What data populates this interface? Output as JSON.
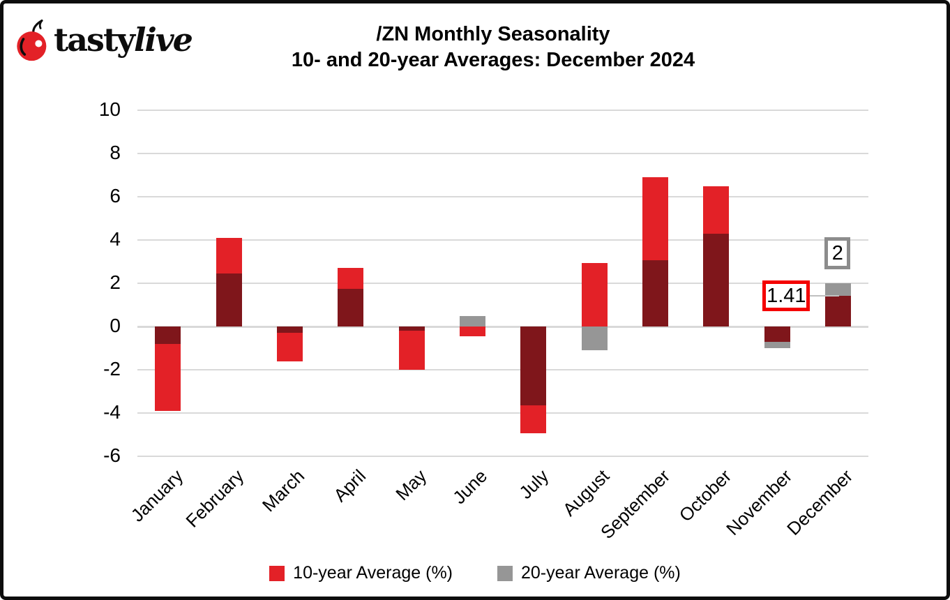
{
  "logo": {
    "brand_regular": "tasty",
    "brand_italic": "live",
    "icon": "cherry-icon"
  },
  "title": {
    "line1": "/ZN Monthly Seasonality",
    "line2": "10- and 20-year Averages: December 2024"
  },
  "chart_data": {
    "type": "bar",
    "title": "/ZN Monthly Seasonality",
    "subtitle": "10- and 20-year Averages: December 2024",
    "categories": [
      "January",
      "February",
      "March",
      "April",
      "May",
      "June",
      "July",
      "August",
      "September",
      "October",
      "November",
      "December"
    ],
    "series": [
      {
        "name": "10-year Average (%)",
        "color": "#e32127",
        "values": [
          -3.9,
          4.1,
          -1.6,
          2.7,
          -2.0,
          -0.45,
          -4.95,
          2.95,
          6.9,
          6.5,
          -0.7,
          1.41
        ]
      },
      {
        "name": "20-year Average (%)",
        "color": "#969696",
        "values": [
          -0.8,
          2.45,
          -0.3,
          1.75,
          -0.2,
          0.5,
          -3.65,
          -1.1,
          3.05,
          4.3,
          -1.0,
          2.0
        ]
      }
    ],
    "overlap_color": "#7f161b",
    "overlap_note": "bars are overlapped, dark red = red over gray",
    "ylim": [
      -6,
      10
    ],
    "yticks": [
      10,
      8,
      6,
      4,
      2,
      0,
      -2,
      -4,
      -6
    ],
    "grid": true,
    "gridline_color": "#d9d9d9",
    "legend_position": "bottom",
    "annotations": [
      {
        "label": "1.41",
        "month": "December",
        "series": "10-year Average (%)",
        "value": 1.41,
        "border_color": "#f40000",
        "placement": "left"
      },
      {
        "label": "2",
        "month": "December",
        "series": "20-year Average (%)",
        "value": 2.0,
        "border_color": "#8c8c8c",
        "placement": "above"
      }
    ]
  },
  "legend": {
    "items": [
      {
        "label": "10-year Average (%)",
        "color": "#e32127"
      },
      {
        "label": "20-year Average (%)",
        "color": "#969696"
      }
    ]
  }
}
